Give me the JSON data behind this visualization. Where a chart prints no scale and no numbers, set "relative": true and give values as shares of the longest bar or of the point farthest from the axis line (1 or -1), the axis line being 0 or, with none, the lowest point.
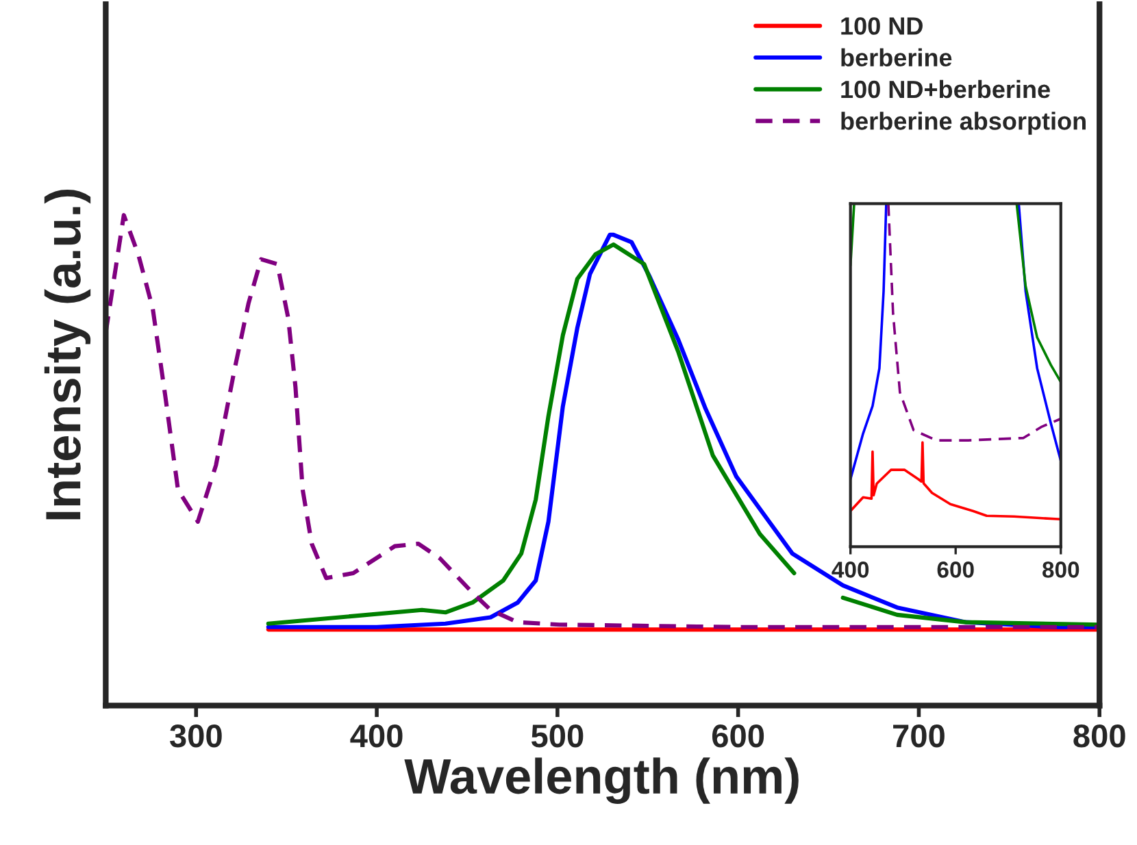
{
  "chart_data": [
    {
      "type": "line",
      "relative": true,
      "xlabel": "Wavelength (nm)",
      "ylabel": "Intensity (a.u.)",
      "xlim": [
        250,
        800
      ],
      "xticks": [
        300,
        400,
        500,
        600,
        700,
        800
      ],
      "legend": "top right",
      "grid": false,
      "series": [
        {
          "name": "100 ND",
          "color": "#ff0000",
          "line_style": "solid",
          "x": [
            340,
            500,
            650,
            800
          ],
          "values": [
            0.155,
            0.155,
            0.155,
            0.155
          ]
        },
        {
          "name": "berberine",
          "color": "#0000ff",
          "line_style": "solid",
          "x": [
            340,
            400,
            438,
            463,
            478,
            488,
            495,
            503,
            511,
            518,
            529,
            531,
            541,
            551,
            567,
            582,
            599,
            630,
            658,
            688,
            726,
            776,
            800
          ],
          "values": [
            0.16,
            0.16,
            0.167,
            0.18,
            0.21,
            0.255,
            0.375,
            0.61,
            0.77,
            0.88,
            0.96,
            0.96,
            0.945,
            0.875,
            0.745,
            0.605,
            0.467,
            0.31,
            0.245,
            0.2,
            0.17,
            0.16,
            0.16
          ]
        },
        {
          "name": "100 ND+berberine",
          "color": "#008000",
          "line_style": "solid",
          "x": [
            340,
            425,
            438,
            453,
            470,
            480,
            488,
            495,
            503,
            511,
            521,
            531,
            548,
            567,
            586,
            612,
            631,
            645,
            658,
            688,
            726,
            800
          ],
          "values": [
            0.167,
            0.195,
            0.19,
            0.21,
            0.255,
            0.31,
            0.42,
            0.59,
            0.755,
            0.87,
            0.92,
            0.94,
            0.9,
            0.72,
            0.51,
            0.35,
            0.27,
            null,
            0.22,
            0.185,
            0.17,
            0.165
          ]
        },
        {
          "name": "berberine absorption",
          "color": "#800080",
          "line_style": "dashed",
          "x": [
            250,
            260,
            268,
            276,
            283,
            290,
            301,
            311,
            321,
            329,
            336,
            345,
            351,
            355,
            359,
            364,
            372,
            387,
            410,
            423,
            435,
            453,
            463,
            478,
            501,
            600,
            700,
            800
          ],
          "values": [
            0.76,
            1.0,
            0.92,
            0.81,
            0.63,
            0.44,
            0.375,
            0.49,
            0.68,
            0.82,
            0.91,
            0.9,
            0.79,
            0.65,
            0.44,
            0.33,
            0.26,
            0.27,
            0.325,
            0.33,
            0.3,
            0.23,
            0.195,
            0.17,
            0.165,
            0.16,
            0.16,
            0.16
          ]
        }
      ]
    },
    {
      "type": "line",
      "relative": true,
      "xlim": [
        400,
        800
      ],
      "xticks": [
        400,
        600,
        800
      ],
      "legend": false,
      "grid": false,
      "series": [
        {
          "color": "#ff0000",
          "line_style": "solid",
          "x": [
            400,
            424,
            440,
            442,
            444,
            450,
            477,
            503,
            529,
            535,
            537,
            539,
            555,
            590,
            633,
            659,
            711,
            800
          ],
          "values": [
            0.104,
            0.144,
            0.14,
            0.277,
            0.15,
            0.184,
            0.224,
            0.224,
            0.197,
            0.19,
            0.304,
            0.185,
            0.157,
            0.124,
            0.104,
            0.09,
            0.088,
            0.08
          ]
        },
        {
          "color": "#0000ff",
          "line_style": "solid",
          "x": [
            400,
            424,
            442,
            455,
            463,
            468,
            600,
            720,
            733,
            755,
            781,
            800
          ],
          "values": [
            0.197,
            0.33,
            0.41,
            0.52,
            0.745,
            1.0,
            null,
            1.0,
            0.745,
            0.52,
            0.36,
            0.25
          ]
        },
        {
          "color": "#008000",
          "line_style": "solid",
          "x": [
            400,
            407,
            600,
            716,
            733,
            755,
            781,
            800
          ],
          "values": [
            0.82,
            1.0,
            null,
            1.0,
            0.76,
            0.61,
            0.53,
            0.48
          ]
        },
        {
          "color": "#800080",
          "line_style": "dashed",
          "x": [
            472,
            481,
            494,
            520,
            563,
            624,
            729,
            764,
            800
          ],
          "values": [
            1.0,
            0.68,
            0.45,
            0.34,
            0.31,
            0.31,
            0.317,
            0.35,
            0.373
          ]
        }
      ]
    }
  ]
}
